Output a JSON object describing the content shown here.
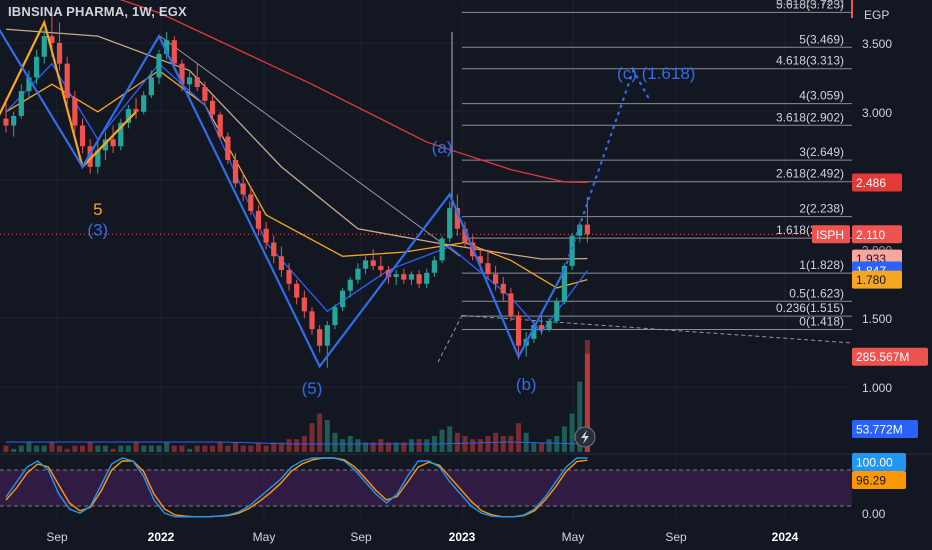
{
  "header": {
    "title": "IBNSINA PHARMA, 1W, EGX",
    "currency": "EGP"
  },
  "colors": {
    "background": "#131722",
    "up": "#26a69a",
    "down": "#ef5350",
    "ma_red": "#e53935",
    "ma_orange": "#f5a623",
    "ma_blue": "#2962ff",
    "ma_tan": "#c8a98a",
    "wave_blue": "#2f6ee8",
    "wave_orange": "#f5a623",
    "fib_line": "#b2b5be",
    "stoch_k": "#2196f3",
    "stoch_d": "#ff9800",
    "stoch_fill": "#3b1f4f"
  },
  "chart_data": {
    "type": "candlestick",
    "symbol": "ISPH",
    "interval": "1W",
    "exchange": "EGX",
    "x_ticks": [
      "Sep",
      "2022",
      "May",
      "Sep",
      "2023",
      "May",
      "Sep",
      "2024"
    ],
    "y_ticks": [
      "3.500",
      "3.000",
      "1.500",
      "1.000"
    ],
    "y_ticks_partial": [
      "5.618(3.723)",
      "2.000"
    ],
    "y_range": [
      0.82,
      3.75
    ],
    "last_price": 2.11,
    "candles": [
      {
        "i": 0,
        "o": 2.95,
        "h": 3.1,
        "l": 2.85,
        "c": 2.9
      },
      {
        "i": 1,
        "o": 2.9,
        "h": 3.0,
        "l": 2.82,
        "c": 2.97
      },
      {
        "i": 2,
        "o": 2.97,
        "h": 3.2,
        "l": 2.95,
        "c": 3.15
      },
      {
        "i": 3,
        "o": 3.15,
        "h": 3.3,
        "l": 3.1,
        "c": 3.25
      },
      {
        "i": 4,
        "o": 3.25,
        "h": 3.45,
        "l": 3.2,
        "c": 3.4
      },
      {
        "i": 5,
        "o": 3.4,
        "h": 3.6,
        "l": 3.35,
        "c": 3.55
      },
      {
        "i": 6,
        "o": 3.55,
        "h": 3.72,
        "l": 3.4,
        "c": 3.5
      },
      {
        "i": 7,
        "o": 3.5,
        "h": 3.65,
        "l": 3.3,
        "c": 3.35
      },
      {
        "i": 8,
        "o": 3.35,
        "h": 3.4,
        "l": 3.05,
        "c": 3.1
      },
      {
        "i": 9,
        "o": 3.1,
        "h": 3.15,
        "l": 2.85,
        "c": 2.9
      },
      {
        "i": 10,
        "o": 2.9,
        "h": 2.95,
        "l": 2.7,
        "c": 2.75
      },
      {
        "i": 11,
        "o": 2.75,
        "h": 2.8,
        "l": 2.55,
        "c": 2.6
      },
      {
        "i": 12,
        "o": 2.6,
        "h": 2.78,
        "l": 2.55,
        "c": 2.72
      },
      {
        "i": 13,
        "o": 2.72,
        "h": 2.85,
        "l": 2.65,
        "c": 2.8
      },
      {
        "i": 14,
        "o": 2.8,
        "h": 2.9,
        "l": 2.7,
        "c": 2.75
      },
      {
        "i": 15,
        "o": 2.75,
        "h": 2.95,
        "l": 2.72,
        "c": 2.92
      },
      {
        "i": 16,
        "o": 2.92,
        "h": 3.05,
        "l": 2.88,
        "c": 3.02
      },
      {
        "i": 17,
        "o": 3.02,
        "h": 3.1,
        "l": 2.95,
        "c": 3.0
      },
      {
        "i": 18,
        "o": 3.0,
        "h": 3.15,
        "l": 2.98,
        "c": 3.12
      },
      {
        "i": 19,
        "o": 3.12,
        "h": 3.3,
        "l": 3.1,
        "c": 3.25
      },
      {
        "i": 20,
        "o": 3.25,
        "h": 3.45,
        "l": 3.2,
        "c": 3.42
      },
      {
        "i": 21,
        "o": 3.42,
        "h": 3.58,
        "l": 3.38,
        "c": 3.52
      },
      {
        "i": 22,
        "o": 3.52,
        "h": 3.55,
        "l": 3.3,
        "c": 3.35
      },
      {
        "i": 23,
        "o": 3.35,
        "h": 3.38,
        "l": 3.15,
        "c": 3.2
      },
      {
        "i": 24,
        "o": 3.2,
        "h": 3.3,
        "l": 3.12,
        "c": 3.25
      },
      {
        "i": 25,
        "o": 3.25,
        "h": 3.35,
        "l": 3.15,
        "c": 3.18
      },
      {
        "i": 26,
        "o": 3.18,
        "h": 3.22,
        "l": 3.05,
        "c": 3.08
      },
      {
        "i": 27,
        "o": 3.08,
        "h": 3.12,
        "l": 2.95,
        "c": 2.98
      },
      {
        "i": 28,
        "o": 2.98,
        "h": 3.0,
        "l": 2.8,
        "c": 2.82
      },
      {
        "i": 29,
        "o": 2.82,
        "h": 2.85,
        "l": 2.62,
        "c": 2.65
      },
      {
        "i": 30,
        "o": 2.65,
        "h": 2.7,
        "l": 2.45,
        "c": 2.48
      },
      {
        "i": 31,
        "o": 2.48,
        "h": 2.55,
        "l": 2.35,
        "c": 2.4
      },
      {
        "i": 32,
        "o": 2.4,
        "h": 2.45,
        "l": 2.25,
        "c": 2.28
      },
      {
        "i": 33,
        "o": 2.28,
        "h": 2.32,
        "l": 2.1,
        "c": 2.15
      },
      {
        "i": 34,
        "o": 2.15,
        "h": 2.2,
        "l": 2.0,
        "c": 2.05
      },
      {
        "i": 35,
        "o": 2.05,
        "h": 2.1,
        "l": 1.9,
        "c": 1.95
      },
      {
        "i": 36,
        "o": 1.95,
        "h": 2.02,
        "l": 1.8,
        "c": 1.85
      },
      {
        "i": 37,
        "o": 1.85,
        "h": 1.9,
        "l": 1.7,
        "c": 1.75
      },
      {
        "i": 38,
        "o": 1.75,
        "h": 1.78,
        "l": 1.6,
        "c": 1.65
      },
      {
        "i": 39,
        "o": 1.65,
        "h": 1.7,
        "l": 1.5,
        "c": 1.55
      },
      {
        "i": 40,
        "o": 1.55,
        "h": 1.58,
        "l": 1.38,
        "c": 1.42
      },
      {
        "i": 41,
        "o": 1.42,
        "h": 1.45,
        "l": 1.25,
        "c": 1.3
      },
      {
        "i": 42,
        "o": 1.3,
        "h": 1.48,
        "l": 1.14,
        "c": 1.45
      },
      {
        "i": 43,
        "o": 1.45,
        "h": 1.6,
        "l": 1.42,
        "c": 1.58
      },
      {
        "i": 44,
        "o": 1.58,
        "h": 1.72,
        "l": 1.55,
        "c": 1.7
      },
      {
        "i": 45,
        "o": 1.7,
        "h": 1.8,
        "l": 1.65,
        "c": 1.78
      },
      {
        "i": 46,
        "o": 1.78,
        "h": 1.9,
        "l": 1.75,
        "c": 1.86
      },
      {
        "i": 47,
        "o": 1.86,
        "h": 1.95,
        "l": 1.82,
        "c": 1.92
      },
      {
        "i": 48,
        "o": 1.92,
        "h": 2.0,
        "l": 1.85,
        "c": 1.88
      },
      {
        "i": 49,
        "o": 1.88,
        "h": 1.95,
        "l": 1.8,
        "c": 1.85
      },
      {
        "i": 50,
        "o": 1.85,
        "h": 1.88,
        "l": 1.75,
        "c": 1.8
      },
      {
        "i": 51,
        "o": 1.8,
        "h": 1.85,
        "l": 1.74,
        "c": 1.82
      },
      {
        "i": 52,
        "o": 1.82,
        "h": 1.86,
        "l": 1.75,
        "c": 1.78
      },
      {
        "i": 53,
        "o": 1.78,
        "h": 1.84,
        "l": 1.74,
        "c": 1.82
      },
      {
        "i": 54,
        "o": 1.82,
        "h": 1.85,
        "l": 1.72,
        "c": 1.75
      },
      {
        "i": 55,
        "o": 1.75,
        "h": 1.86,
        "l": 1.72,
        "c": 1.83
      },
      {
        "i": 56,
        "o": 1.83,
        "h": 1.95,
        "l": 1.8,
        "c": 1.92
      },
      {
        "i": 57,
        "o": 1.92,
        "h": 2.1,
        "l": 1.9,
        "c": 2.08
      },
      {
        "i": 58,
        "o": 2.08,
        "h": 2.35,
        "l": 2.05,
        "c": 2.3
      },
      {
        "i": 59,
        "o": 2.3,
        "h": 2.4,
        "l": 2.1,
        "c": 2.15
      },
      {
        "i": 60,
        "o": 2.15,
        "h": 2.2,
        "l": 2.02,
        "c": 2.05
      },
      {
        "i": 61,
        "o": 2.05,
        "h": 2.1,
        "l": 1.92,
        "c": 1.95
      },
      {
        "i": 62,
        "o": 1.95,
        "h": 2.0,
        "l": 1.85,
        "c": 1.9
      },
      {
        "i": 63,
        "o": 1.9,
        "h": 2.0,
        "l": 1.78,
        "c": 1.82
      },
      {
        "i": 64,
        "o": 1.82,
        "h": 1.88,
        "l": 1.7,
        "c": 1.75
      },
      {
        "i": 65,
        "o": 1.75,
        "h": 1.8,
        "l": 1.62,
        "c": 1.68
      },
      {
        "i": 66,
        "o": 1.68,
        "h": 1.72,
        "l": 1.48,
        "c": 1.52
      },
      {
        "i": 67,
        "o": 1.52,
        "h": 1.55,
        "l": 1.2,
        "c": 1.3
      },
      {
        "i": 68,
        "o": 1.3,
        "h": 1.4,
        "l": 1.22,
        "c": 1.35
      },
      {
        "i": 69,
        "o": 1.35,
        "h": 1.48,
        "l": 1.32,
        "c": 1.45
      },
      {
        "i": 70,
        "o": 1.45,
        "h": 1.52,
        "l": 1.38,
        "c": 1.42
      },
      {
        "i": 71,
        "o": 1.42,
        "h": 1.5,
        "l": 1.4,
        "c": 1.48
      },
      {
        "i": 72,
        "o": 1.48,
        "h": 1.65,
        "l": 1.46,
        "c": 1.62
      },
      {
        "i": 73,
        "o": 1.62,
        "h": 1.9,
        "l": 1.6,
        "c": 1.88
      },
      {
        "i": 74,
        "o": 1.88,
        "h": 2.12,
        "l": 1.85,
        "c": 2.1
      },
      {
        "i": 75,
        "o": 2.1,
        "h": 2.2,
        "l": 2.05,
        "c": 2.18
      },
      {
        "i": 76,
        "o": 2.18,
        "h": 2.38,
        "l": 2.05,
        "c": 2.11
      }
    ],
    "moving_averages": [
      {
        "color": "ma_red",
        "points": [
          [
            0,
            4.1
          ],
          [
            20,
            3.72
          ],
          [
            40,
            3.2
          ],
          [
            55,
            2.78
          ],
          [
            66,
            2.58
          ],
          [
            73,
            2.49
          ],
          [
            76,
            2.486
          ]
        ]
      },
      {
        "color": "ma_orange",
        "points": [
          [
            0,
            3.0
          ],
          [
            6,
            3.2
          ],
          [
            12,
            3.0
          ],
          [
            20,
            3.3
          ],
          [
            26,
            3.05
          ],
          [
            34,
            2.25
          ],
          [
            44,
            1.95
          ],
          [
            52,
            1.98
          ],
          [
            60,
            2.05
          ],
          [
            66,
            1.92
          ],
          [
            72,
            1.72
          ],
          [
            76,
            1.78
          ]
        ]
      },
      {
        "color": "ma_blue",
        "points": [
          [
            0,
            3.0
          ],
          [
            6,
            3.35
          ],
          [
            12,
            2.8
          ],
          [
            20,
            3.35
          ],
          [
            26,
            3.05
          ],
          [
            34,
            2.05
          ],
          [
            42,
            1.55
          ],
          [
            50,
            1.85
          ],
          [
            58,
            2.02
          ],
          [
            66,
            1.65
          ],
          [
            70,
            1.4
          ],
          [
            76,
            1.847
          ]
        ]
      },
      {
        "color": "ma_tan",
        "points": [
          [
            0,
            3.6
          ],
          [
            12,
            3.55
          ],
          [
            24,
            3.3
          ],
          [
            36,
            2.6
          ],
          [
            46,
            2.15
          ],
          [
            56,
            2.05
          ],
          [
            64,
            1.98
          ],
          [
            70,
            1.93
          ],
          [
            76,
            1.933
          ]
        ]
      }
    ],
    "elliott_waves": [
      {
        "color": "wave_orange",
        "points": [
          [
            -2,
            2.85
          ],
          [
            5,
            3.65
          ],
          [
            10,
            2.6
          ],
          [
            17,
            3.0
          ]
        ]
      },
      {
        "color": "wave_blue",
        "points": [
          [
            -2,
            3.7
          ],
          [
            10,
            2.6
          ],
          [
            20,
            3.55
          ],
          [
            41,
            1.15
          ],
          [
            58,
            2.4
          ],
          [
            67,
            1.22
          ],
          [
            73,
            1.85
          ]
        ]
      }
    ],
    "projection_dotted": [
      [
        73,
        1.85
      ],
      [
        77,
        2.5
      ],
      [
        82,
        3.3
      ],
      [
        84,
        3.1
      ]
    ],
    "wave_labels": [
      {
        "text": "5",
        "i": 12,
        "v": 2.25,
        "color": "wave_orange"
      },
      {
        "text": "(3)",
        "i": 12,
        "v": 2.1,
        "color": "wave_blue"
      },
      {
        "text": "(a)",
        "i": 57,
        "v": 2.7,
        "color": "wave_blue"
      },
      {
        "text": "(5)",
        "i": 40,
        "v": 0.95,
        "color": "wave_blue"
      },
      {
        "text": "(b)",
        "i": 68,
        "v": 0.98,
        "color": "wave_blue"
      },
      {
        "text": "(c) (1.618)",
        "i": 85,
        "v": 3.24,
        "color": "wave_blue"
      }
    ],
    "fib_levels": [
      {
        "label": "5.618(3.723)",
        "value": 3.723
      },
      {
        "label": "5(3.469)",
        "value": 3.469
      },
      {
        "label": "4.618(3.313)",
        "value": 3.313
      },
      {
        "label": "4(3.059)",
        "value": 3.059
      },
      {
        "label": "3.618(2.902)",
        "value": 2.902
      },
      {
        "label": "3(2.649)",
        "value": 2.649
      },
      {
        "label": "2.618(2.492)",
        "value": 2.492
      },
      {
        "label": "2(2.238)",
        "value": 2.238
      },
      {
        "label": "1.618(2.082)",
        "value": 2.082
      },
      {
        "label": "1(1.828)",
        "value": 1.828
      },
      {
        "label": "0.5(1.623)",
        "value": 1.623
      },
      {
        "label": "0.236(1.515)",
        "value": 1.515
      },
      {
        "label": "0(1.418)",
        "value": 1.418
      }
    ],
    "price_tags": [
      {
        "label": "2.486",
        "value": 2.486,
        "bg": "#e53935",
        "fg": "#ffffff"
      },
      {
        "label": "2.110",
        "value": 2.11,
        "bg": "#ef5350",
        "fg": "#ffffff",
        "prefix": "ISPH"
      },
      {
        "label": "1.933",
        "value": 1.933,
        "bg": "#f8a79b",
        "fg": "#131722"
      },
      {
        "label": "1.847",
        "value": 1.847,
        "bg": "#2962ff",
        "fg": "#ffffff"
      },
      {
        "label": "1.780",
        "value": 1.78,
        "bg": "#f5a623",
        "fg": "#131722"
      },
      {
        "label": "285.567M",
        "value": 1.22,
        "bg": "#ef5350",
        "fg": "#ffffff"
      }
    ],
    "volume": {
      "tag": "53.772M",
      "bars": [
        2,
        1,
        2,
        3,
        2,
        2,
        3,
        2,
        1,
        2,
        2,
        3,
        2,
        2,
        1,
        2,
        2,
        3,
        2,
        2,
        2,
        3,
        2,
        2,
        1,
        2,
        2,
        2,
        3,
        2,
        3,
        2,
        2,
        3,
        2,
        3,
        3,
        4,
        4,
        5,
        9,
        12,
        10,
        6,
        4,
        5,
        4,
        3,
        3,
        4,
        3,
        3,
        3,
        4,
        4,
        4,
        5,
        7,
        8,
        6,
        5,
        4,
        4,
        5,
        6,
        5,
        5,
        9,
        6,
        3,
        3,
        4,
        5,
        8,
        12,
        22,
        35
      ],
      "avg_line": [
        5,
        5,
        5,
        5,
        4,
        4,
        4,
        5,
        4
      ]
    },
    "stochastic": {
      "k_tag": "100.00",
      "d_tag": "96.29",
      "y_ticks": [
        "0.00"
      ],
      "upper": 80,
      "lower": 20,
      "k": [
        35,
        60,
        85,
        95,
        80,
        40,
        15,
        8,
        20,
        55,
        90,
        100,
        95,
        70,
        30,
        8,
        2,
        2,
        2,
        2,
        3,
        5,
        10,
        20,
        35,
        50,
        65,
        85,
        95,
        100,
        100,
        100,
        95,
        80,
        60,
        40,
        25,
        40,
        70,
        95,
        95,
        85,
        60,
        40,
        20,
        8,
        3,
        2,
        2,
        5,
        15,
        35,
        60,
        85,
        100,
        100
      ],
      "d": [
        30,
        50,
        75,
        90,
        85,
        55,
        25,
        12,
        18,
        45,
        80,
        95,
        95,
        78,
        40,
        15,
        5,
        3,
        2,
        2,
        3,
        4,
        8,
        16,
        28,
        42,
        58,
        78,
        90,
        97,
        100,
        100,
        97,
        85,
        66,
        46,
        30,
        36,
        60,
        85,
        93,
        88,
        68,
        48,
        28,
        12,
        5,
        2,
        2,
        4,
        12,
        30,
        52,
        78,
        94,
        96.29
      ]
    }
  }
}
